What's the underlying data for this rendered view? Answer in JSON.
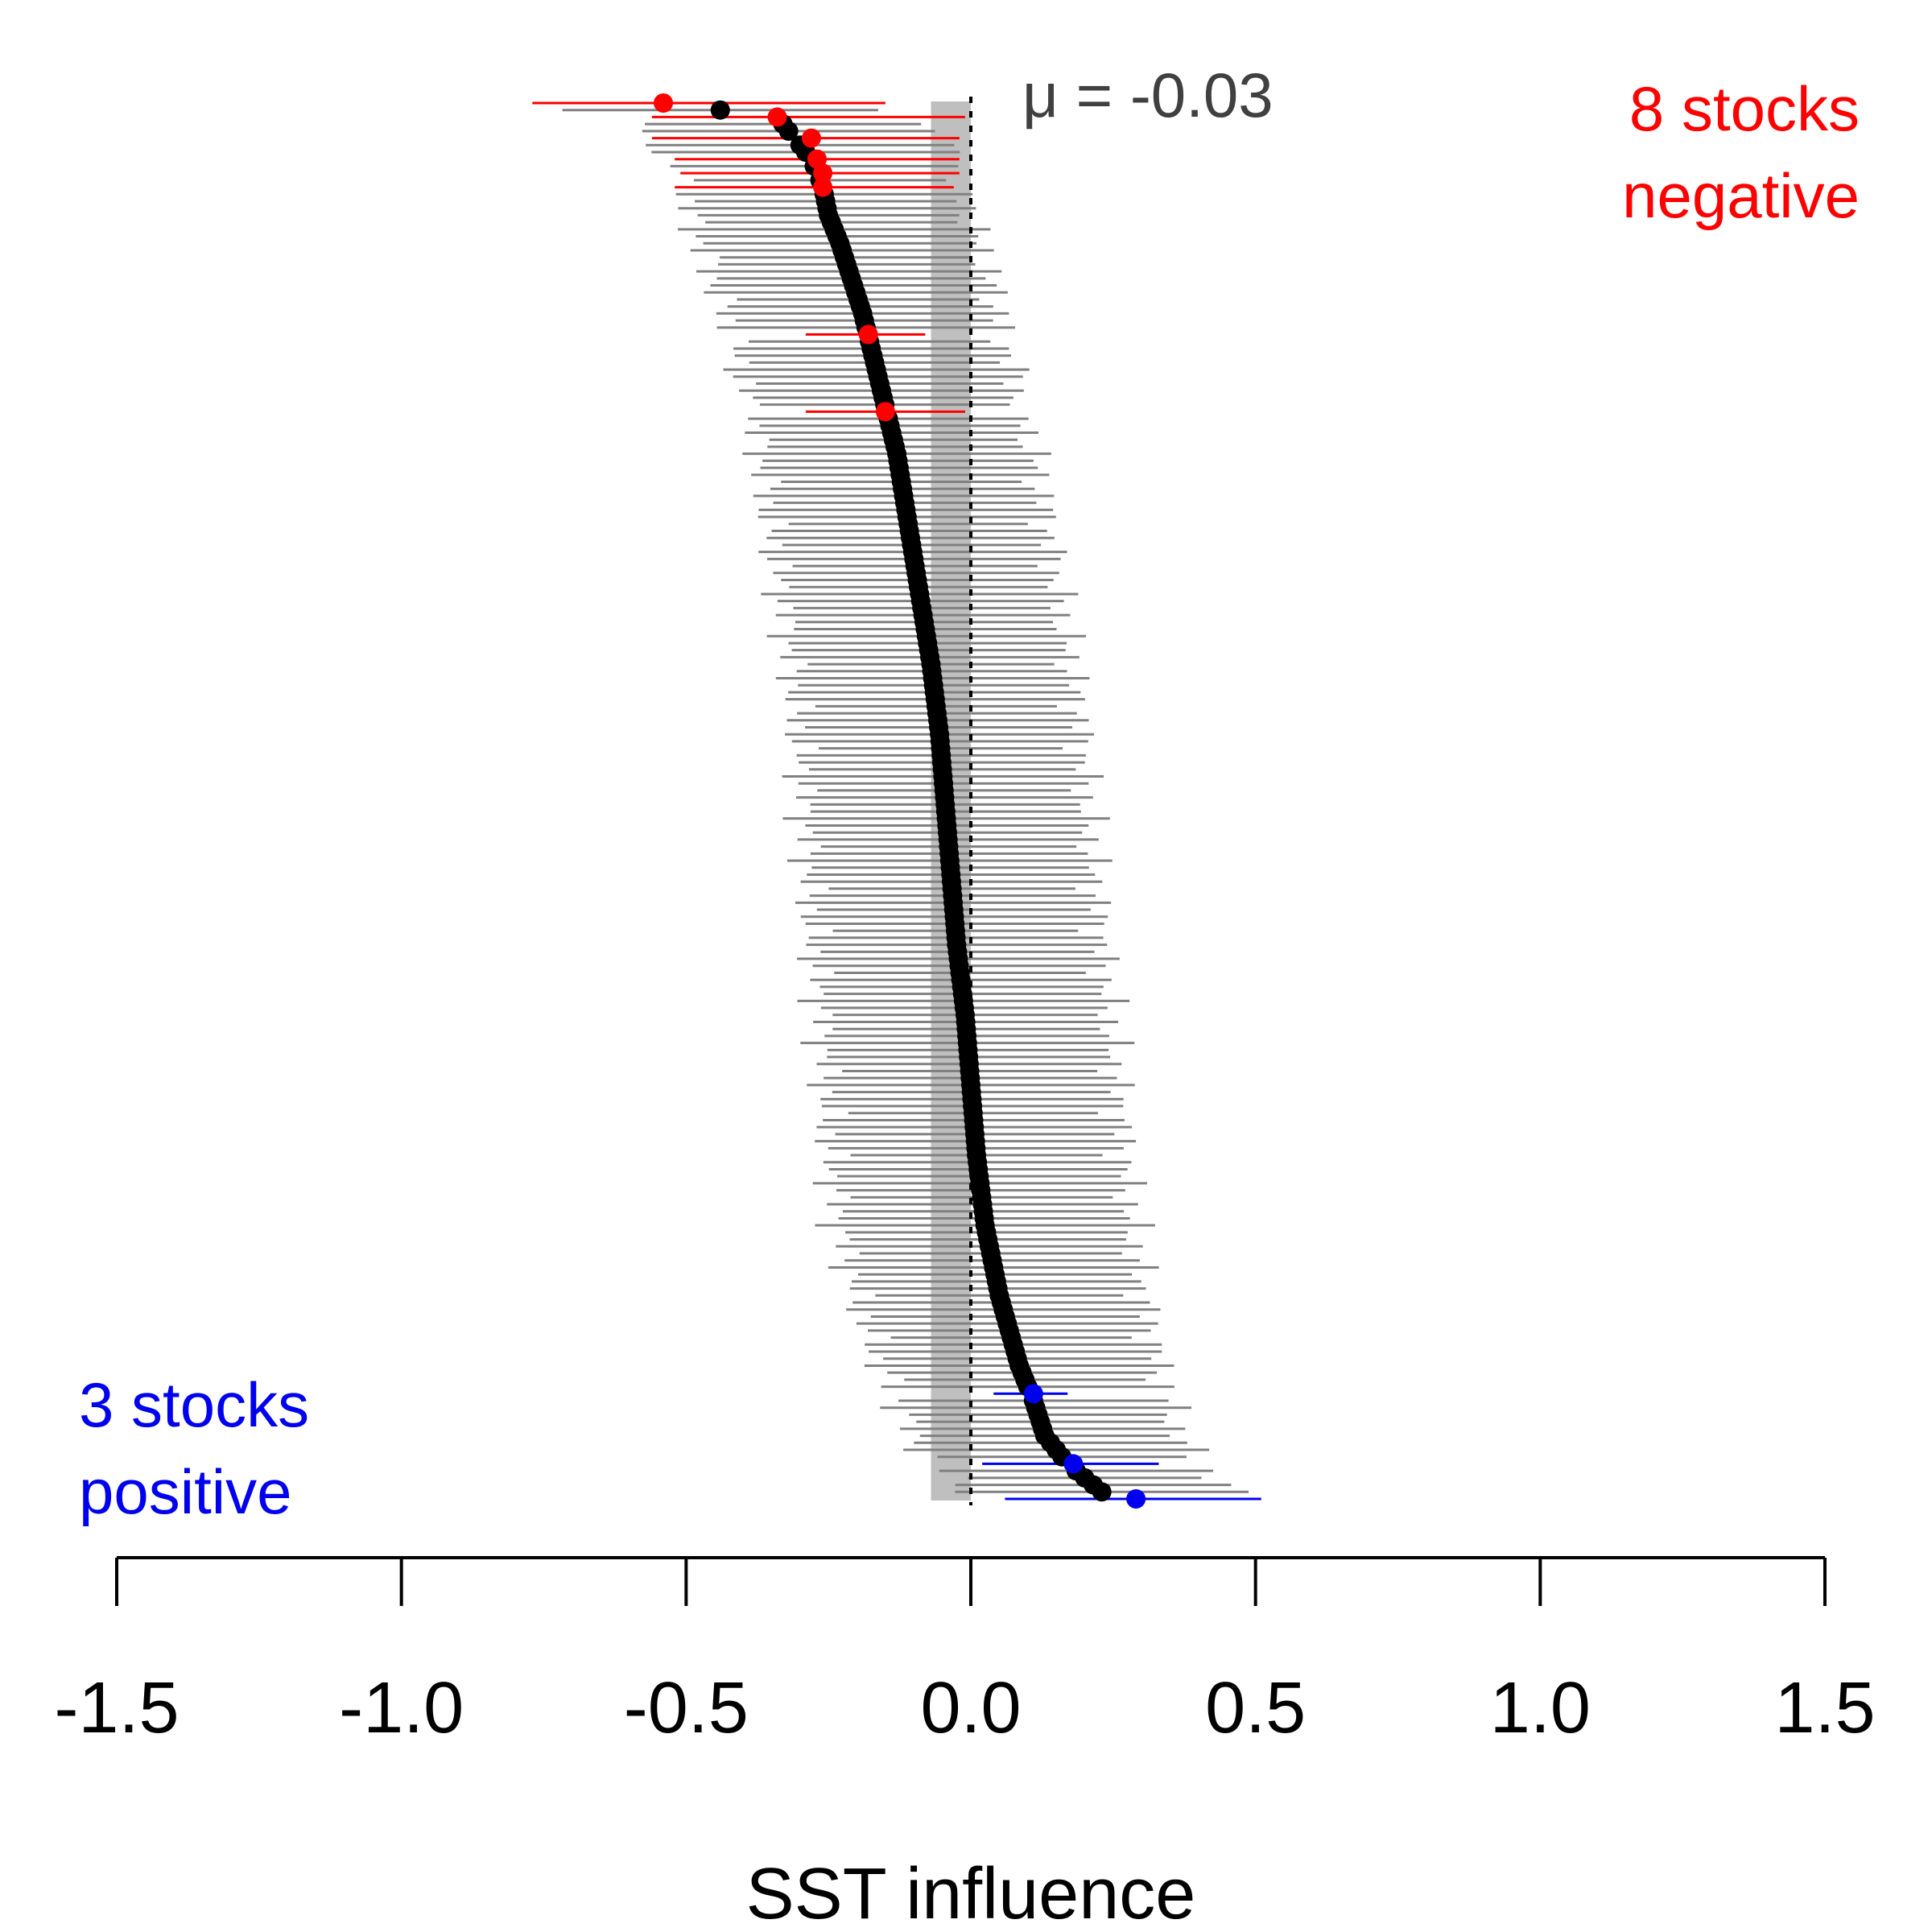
{
  "chart_data": {
    "type": "scatter",
    "subtype": "forest-plot",
    "xlabel": "SST influence",
    "xlim": [
      -1.5,
      1.5
    ],
    "xticks": [
      "-1.5",
      "-1.0",
      "-0.5",
      "0.0",
      "0.5",
      "1.0",
      "1.5"
    ],
    "mean_label": "μ = -0.03",
    "mean": -0.03,
    "mean_band": [
      -0.07,
      0.0
    ],
    "reference_line": 0,
    "n_stocks": 200,
    "annotations": {
      "negative_line1": "8 stocks",
      "negative_line2": "negative",
      "positive_line1": "3 stocks",
      "positive_line2": "positive"
    },
    "colors": {
      "negative": "#ff0000",
      "positive": "#0000ee",
      "neutral_point": "#000000",
      "neutral_interval": "#808080",
      "band": "#bfbfbf",
      "mean_label": "#404040"
    },
    "estimate_profile": {
      "rank": [
        0,
        2,
        5,
        8,
        12,
        16,
        20,
        30,
        40,
        50,
        60,
        70,
        80,
        90,
        100,
        110,
        120,
        130,
        140,
        150,
        160,
        170,
        180,
        185,
        190,
        194,
        198,
        199
      ],
      "value": [
        -0.54,
        -0.34,
        -0.31,
        -0.28,
        -0.26,
        -0.25,
        -0.23,
        -0.19,
        -0.16,
        -0.13,
        -0.11,
        -0.09,
        -0.07,
        -0.055,
        -0.045,
        -0.035,
        -0.025,
        -0.01,
        0.0,
        0.01,
        0.025,
        0.05,
        0.085,
        0.11,
        0.13,
        0.17,
        0.23,
        0.29
      ]
    },
    "interval_halfwidth_profile": {
      "rank": [
        0,
        40,
        100,
        160,
        199
      ],
      "value": [
        0.25,
        0.24,
        0.25,
        0.26,
        0.23
      ]
    },
    "highlighted": [
      {
        "rank": 0,
        "estimate": -0.54,
        "lower": -0.77,
        "upper": -0.15,
        "sign": "negative"
      },
      {
        "rank": 2,
        "estimate": -0.34,
        "lower": -0.56,
        "upper": -0.01,
        "sign": "negative"
      },
      {
        "rank": 5,
        "estimate": -0.28,
        "lower": -0.56,
        "upper": -0.02,
        "sign": "negative"
      },
      {
        "rank": 8,
        "estimate": -0.27,
        "lower": -0.52,
        "upper": -0.02,
        "sign": "negative"
      },
      {
        "rank": 10,
        "estimate": -0.26,
        "lower": -0.51,
        "upper": -0.02,
        "sign": "negative"
      },
      {
        "rank": 12,
        "estimate": -0.26,
        "lower": -0.52,
        "upper": -0.03,
        "sign": "negative"
      },
      {
        "rank": 33,
        "estimate": -0.18,
        "lower": -0.29,
        "upper": -0.08,
        "sign": "negative"
      },
      {
        "rank": 44,
        "estimate": -0.15,
        "lower": -0.29,
        "upper": -0.01,
        "sign": "negative"
      },
      {
        "rank": 184,
        "estimate": 0.11,
        "lower": 0.04,
        "upper": 0.17,
        "sign": "positive"
      },
      {
        "rank": 194,
        "estimate": 0.18,
        "lower": 0.02,
        "upper": 0.33,
        "sign": "positive"
      },
      {
        "rank": 199,
        "estimate": 0.29,
        "lower": 0.06,
        "upper": 0.51,
        "sign": "positive"
      }
    ]
  }
}
